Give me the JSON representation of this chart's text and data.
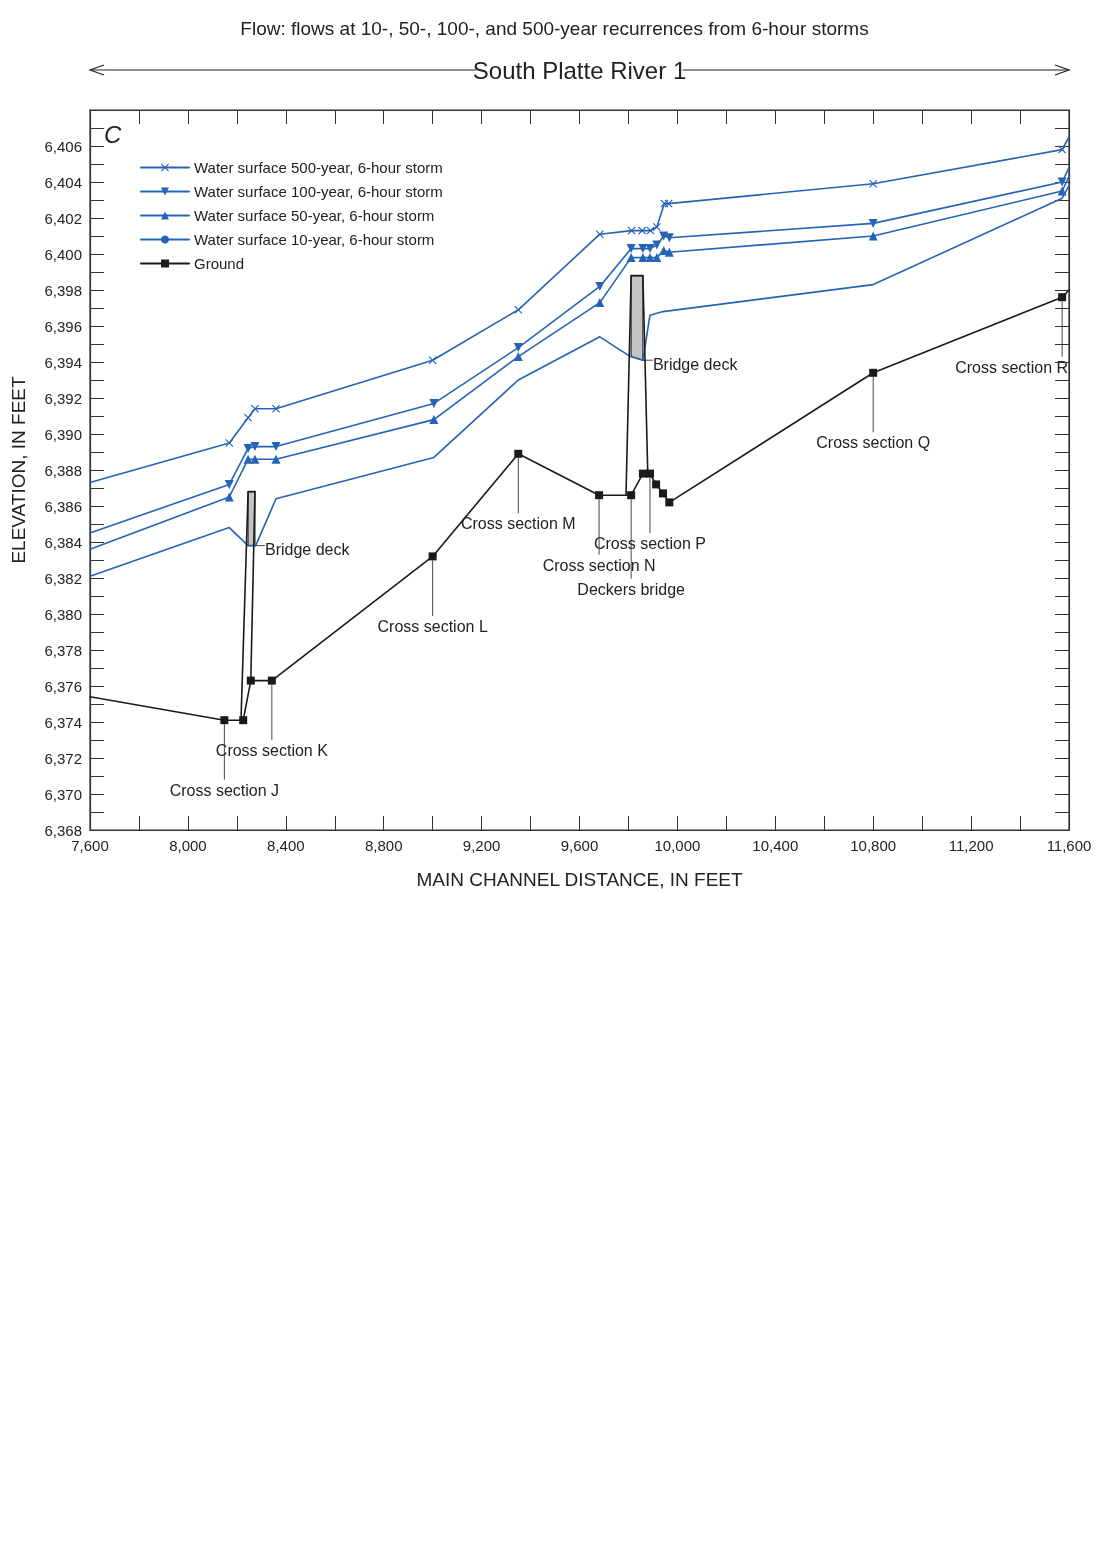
{
  "chart_data": {
    "type": "line",
    "title": "Flow: flows at 10-, 50-, 100-, and 500-year recurrences from 6-hour storms",
    "xlabel": "MAIN CHANNEL DISTANCE, IN FEET",
    "ylabel": "ELEVATION, IN FEET",
    "xlim": [
      7600,
      11600
    ],
    "ylim": [
      6368,
      6408
    ],
    "xticks": [
      {
        "value": 7600,
        "label": "7,600"
      },
      {
        "value": 7800,
        "label": null
      },
      {
        "value": 8000,
        "label": "8,000"
      },
      {
        "value": 8200,
        "label": null
      },
      {
        "value": 8400,
        "label": "8,400"
      },
      {
        "value": 8600,
        "label": null
      },
      {
        "value": 8800,
        "label": "8,800"
      },
      {
        "value": 9000,
        "label": null
      },
      {
        "value": 9200,
        "label": "9,200"
      },
      {
        "value": 9400,
        "label": null
      },
      {
        "value": 9600,
        "label": "9,600"
      },
      {
        "value": 9800,
        "label": null
      },
      {
        "value": 10000,
        "label": "10,000"
      },
      {
        "value": 10200,
        "label": null
      },
      {
        "value": 10400,
        "label": "10,400"
      },
      {
        "value": 10600,
        "label": null
      },
      {
        "value": 10800,
        "label": "10,800"
      },
      {
        "value": 11000,
        "label": null
      },
      {
        "value": 11200,
        "label": "11,200"
      },
      {
        "value": 11400,
        "label": null
      },
      {
        "value": 11600,
        "label": "11,600"
      }
    ],
    "yticks": [
      {
        "value": 6368,
        "label": "6,368"
      },
      {
        "value": 6369,
        "label": null
      },
      {
        "value": 6370,
        "label": "6,370"
      },
      {
        "value": 6371,
        "label": null
      },
      {
        "value": 6372,
        "label": "6,372"
      },
      {
        "value": 6373,
        "label": null
      },
      {
        "value": 6374,
        "label": "6,374"
      },
      {
        "value": 6375,
        "label": null
      },
      {
        "value": 6376,
        "label": "6,376"
      },
      {
        "value": 6377,
        "label": null
      },
      {
        "value": 6378,
        "label": "6,378"
      },
      {
        "value": 6379,
        "label": null
      },
      {
        "value": 6380,
        "label": "6,380"
      },
      {
        "value": 6381,
        "label": null
      },
      {
        "value": 6382,
        "label": "6,382"
      },
      {
        "value": 6383,
        "label": null
      },
      {
        "value": 6384,
        "label": "6,384"
      },
      {
        "value": 6385,
        "label": null
      },
      {
        "value": 6386,
        "label": "6,386"
      },
      {
        "value": 6387,
        "label": null
      },
      {
        "value": 6388,
        "label": "6,388"
      },
      {
        "value": 6389,
        "label": null
      },
      {
        "value": 6390,
        "label": "6,390"
      },
      {
        "value": 6391,
        "label": null
      },
      {
        "value": 6392,
        "label": "6,392"
      },
      {
        "value": 6393,
        "label": null
      },
      {
        "value": 6394,
        "label": "6,394"
      },
      {
        "value": 6395,
        "label": null
      },
      {
        "value": 6396,
        "label": "6,396"
      },
      {
        "value": 6397,
        "label": null
      },
      {
        "value": 6398,
        "label": "6,398"
      },
      {
        "value": 6399,
        "label": null
      },
      {
        "value": 6400,
        "label": "6,400"
      },
      {
        "value": 6401,
        "label": null
      },
      {
        "value": 6402,
        "label": "6,402"
      },
      {
        "value": 6403,
        "label": null
      },
      {
        "value": 6404,
        "label": "6,404"
      },
      {
        "value": 6405,
        "label": null
      },
      {
        "value": 6406,
        "label": "6,406"
      },
      {
        "value": 6407,
        "label": null
      }
    ],
    "legend": "top left",
    "line_style": "solid",
    "series": [
      {
        "name": "Water surface 500-year, 6-hour storm",
        "color": "#2463b5",
        "marker": "cross",
        "x": [
          11600,
          11572,
          10800,
          9964,
          9947,
          9916,
          9890,
          9856,
          9813,
          9683,
          9350,
          9000,
          8360,
          8274,
          8246,
          8169,
          7600
        ],
        "values": [
          6406.5,
          6405.8,
          6403.9,
          6402.8,
          6402.8,
          6401.5,
          6401.3,
          6401.3,
          6401.3,
          6401.1,
          6396.9,
          6394.1,
          6391.4,
          6391.4,
          6390.9,
          6389.5,
          6387.3
        ]
      },
      {
        "name": "Water surface 100-year, 6-hour storm",
        "color": "#2463b5",
        "marker": "triangle",
        "x": [
          11600,
          11572,
          10800,
          9967,
          9944,
          9916,
          9888,
          9859,
          9811,
          9683,
          9350,
          9005,
          8360,
          8274,
          8246,
          8169,
          7600
        ],
        "values": [
          6404.8,
          6404.0,
          6401.7,
          6400.9,
          6401.0,
          6400.5,
          6400.3,
          6400.3,
          6400.3,
          6398.2,
          6394.8,
          6391.7,
          6389.3,
          6389.3,
          6389.2,
          6387.2,
          6384.5
        ]
      },
      {
        "name": "Water surface 50-year, 6-hour storm",
        "color": "#2463b5",
        "marker": "triangle",
        "x": [
          11600,
          11572,
          10800,
          9967,
          9944,
          9916,
          9888,
          9859,
          9811,
          9683,
          9350,
          9005,
          8360,
          8274,
          8246,
          8169,
          7600
        ],
        "values": [
          6404.3,
          6403.5,
          6401.0,
          6400.1,
          6400.2,
          6399.8,
          6399.8,
          6399.8,
          6399.8,
          6397.3,
          6394.3,
          6390.8,
          6388.6,
          6388.6,
          6388.6,
          6386.5,
          6383.6
        ]
      },
      {
        "name": "Water surface 10-year, 6-hour storm",
        "color": "#2463b5",
        "marker": "none",
        "x": [
          11600,
          11572,
          10800,
          9941,
          9888,
          9859,
          9808,
          9683,
          9350,
          9005,
          8360,
          8277,
          8246,
          8169,
          7600
        ],
        "values": [
          6403.8,
          6403.1,
          6398.3,
          6396.8,
          6396.6,
          6394.1,
          6394.3,
          6395.4,
          6393.0,
          6388.7,
          6386.4,
          6383.8,
          6383.8,
          6384.8,
          6382.1
        ]
      },
      {
        "name": "Ground",
        "color": "#1a1a1a",
        "marker": "square",
        "x": [
          11600,
          11572,
          10800,
          9967,
          9941,
          9913,
          9888,
          9859,
          9811,
          9680,
          9350,
          9000,
          8343,
          8257,
          8226,
          8149,
          7600
        ],
        "values": [
          6398.0,
          6397.6,
          6393.4,
          6386.2,
          6386.7,
          6387.2,
          6387.8,
          6387.8,
          6386.6,
          6386.6,
          6388.9,
          6383.2,
          6376.3,
          6376.3,
          6374.1,
          6374.1,
          6375.4
        ]
      },
      {
        "type": "area",
        "color": "#c4c4c4",
        "x": [
          9859,
          9859,
          9811,
          9811
        ],
        "values": [
          6398.8,
          6394.1,
          6394.3,
          6398.8
        ]
      },
      {
        "type": "line",
        "color": "#1a1a1a",
        "marker": "none",
        "x": [
          9879,
          9859,
          9811,
          9790
        ],
        "values": [
          6387.8,
          6398.8,
          6398.8,
          6386.6
        ]
      },
      {
        "type": "area",
        "color": "#c4c4c4",
        "x": [
          8274,
          8274,
          8246,
          8246
        ],
        "values": [
          6386.8,
          6383.8,
          6383.8,
          6386.8
        ]
      },
      {
        "type": "line",
        "color": "#1a1a1a",
        "marker": "none",
        "x": [
          8257,
          8274,
          8246,
          8217
        ],
        "values": [
          6376.3,
          6386.8,
          6386.8,
          6374.1
        ]
      }
    ],
    "annotations": [
      "C",
      "South Platte River 1",
      {
        "text": "Cross section R",
        "x": 11572,
        "y": 6397.6
      },
      {
        "text": "Cross section Q",
        "x": 10800,
        "y": 6393.4
      },
      {
        "text": "Cross section P",
        "x": 9888,
        "y": 6387.8
      },
      {
        "text": "Cross section N",
        "x": 9680,
        "y": 6386.6
      },
      {
        "text": "Cross section M",
        "x": 9350,
        "y": 6388.9
      },
      {
        "text": "Cross section L",
        "x": 9000,
        "y": 6383.2
      },
      {
        "text": "Cross section K",
        "x": 8343,
        "y": 6376.3
      },
      {
        "text": "Cross section J",
        "x": 8149,
        "y": 6374.1
      },
      {
        "text": "Bridge deck",
        "x": 9859,
        "y": 6394.1
      },
      {
        "text": "Bridge deck",
        "x": 8274,
        "y": 6383.8
      },
      {
        "text": "Deckers bridge",
        "x": 9811,
        "y": 6386.6
      }
    ]
  }
}
